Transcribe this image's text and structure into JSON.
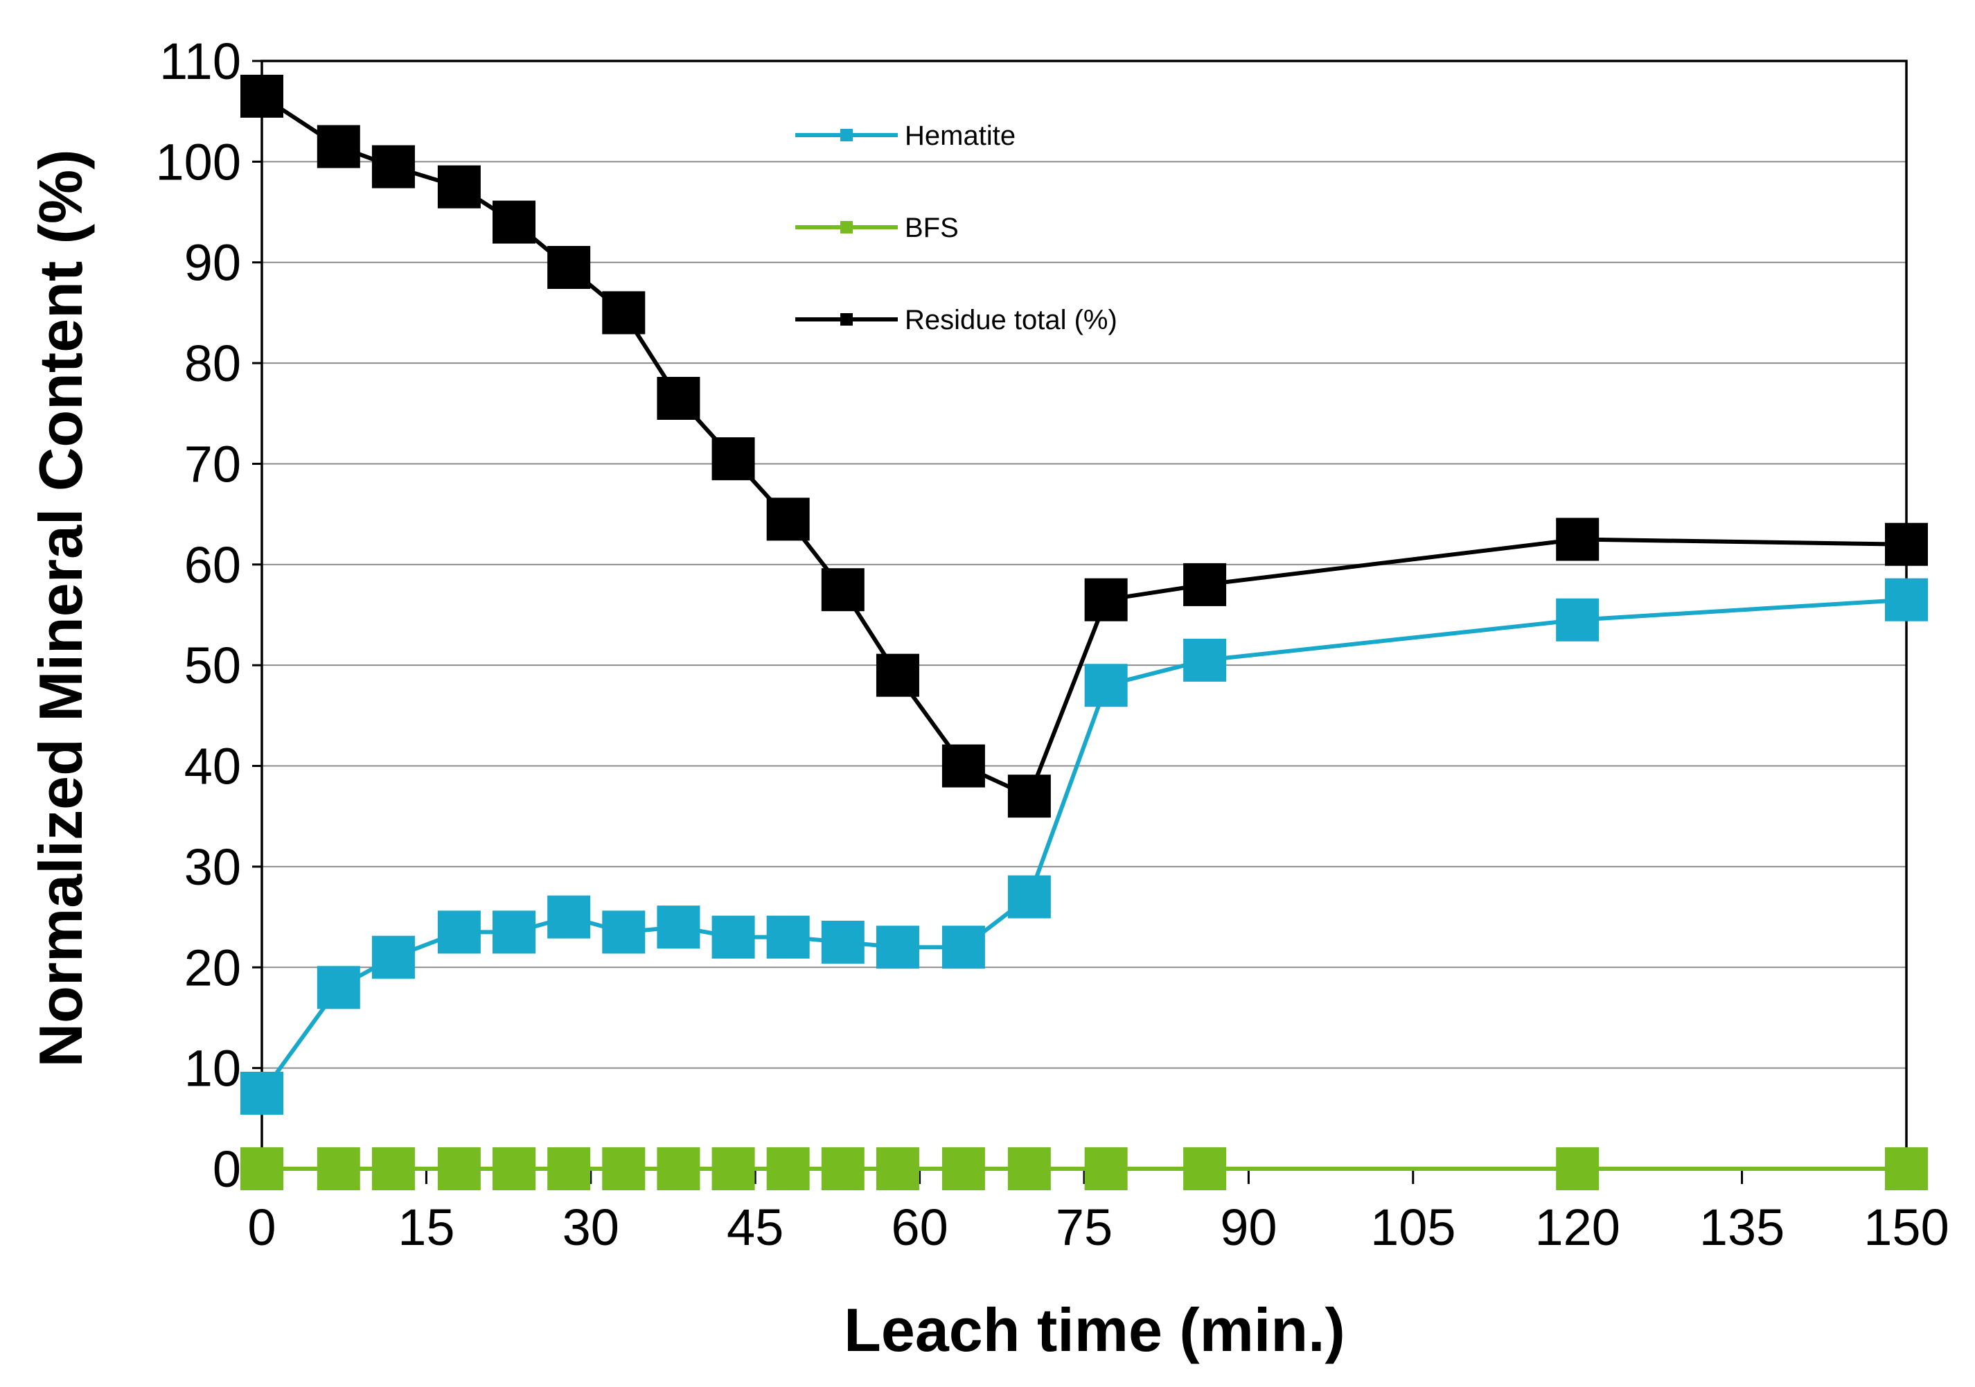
{
  "chart_data": {
    "type": "line",
    "title": "",
    "xlabel": "Leach time (min.)",
    "ylabel": "Normalized Mineral Content (%)",
    "xlim": [
      0,
      150
    ],
    "ylim": [
      0,
      110
    ],
    "xticks": [
      0,
      15,
      30,
      45,
      60,
      75,
      90,
      105,
      120,
      135,
      150
    ],
    "yticks": [
      0,
      10,
      20,
      30,
      40,
      50,
      60,
      70,
      80,
      90,
      100,
      110
    ],
    "grid": "horizontal",
    "legend_position": "top-center",
    "series": [
      {
        "name": "Hematite",
        "color": "#17a8cc",
        "marker": "square",
        "x": [
          0,
          7,
          12,
          18,
          23,
          28,
          33,
          38,
          43,
          48,
          53,
          58,
          64,
          70,
          77,
          86,
          120,
          150
        ],
        "values": [
          7.5,
          18,
          21,
          23.5,
          23.5,
          25,
          23.5,
          24,
          23,
          23,
          22.5,
          22,
          22,
          27,
          48,
          50.5,
          54.5,
          56.5
        ]
      },
      {
        "name": "BFS",
        "color": "#76bc21",
        "marker": "square",
        "x": [
          0,
          7,
          12,
          18,
          23,
          28,
          33,
          38,
          43,
          48,
          53,
          58,
          64,
          70,
          77,
          86,
          120,
          150
        ],
        "values": [
          0,
          0,
          0,
          0,
          0,
          0,
          0,
          0,
          0,
          0,
          0,
          0,
          0,
          0,
          0,
          0,
          0,
          0
        ]
      },
      {
        "name": "Residue total (%)",
        "color": "#000000",
        "marker": "square",
        "x": [
          0,
          7,
          12,
          18,
          23,
          28,
          33,
          38,
          43,
          48,
          53,
          58,
          64,
          70,
          77,
          86,
          120,
          150
        ],
        "values": [
          106.5,
          101.5,
          99.5,
          97.5,
          94,
          89.5,
          85,
          76.5,
          70.5,
          64.5,
          57.5,
          49,
          40,
          37,
          56.5,
          58,
          62.5,
          62
        ]
      }
    ]
  }
}
